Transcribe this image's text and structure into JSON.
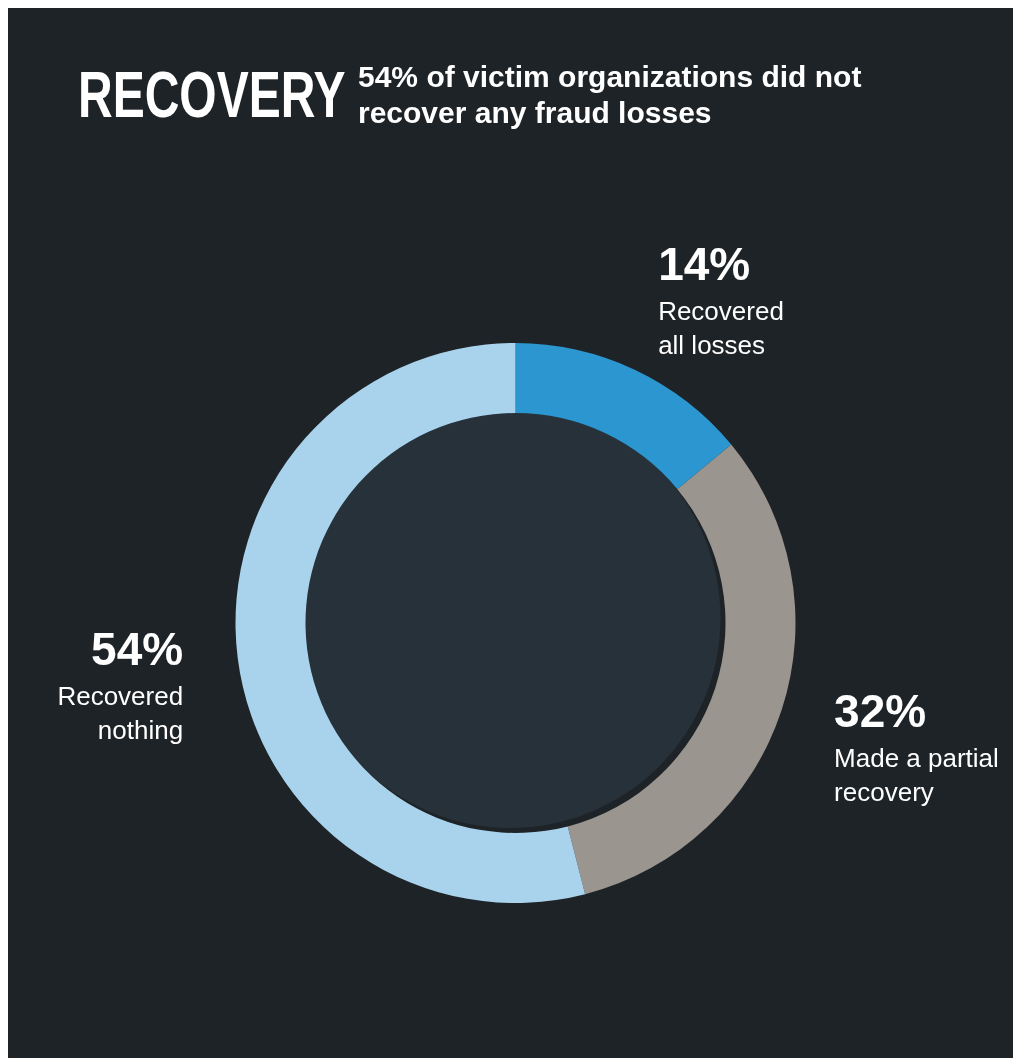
{
  "chart_data": {
    "type": "donut",
    "title": "RECOVERY",
    "subtitle": "54% of victim organizations did not recover any fraud losses",
    "categories": [
      "Recovered all losses",
      "Made a partial recovery",
      "Recovered nothing"
    ],
    "values": [
      14,
      32,
      54
    ],
    "value_labels": [
      "14%",
      "32%",
      "54%"
    ],
    "colors": [
      "#2b96cf",
      "#9a958e",
      "#a9d3ec"
    ]
  }
}
